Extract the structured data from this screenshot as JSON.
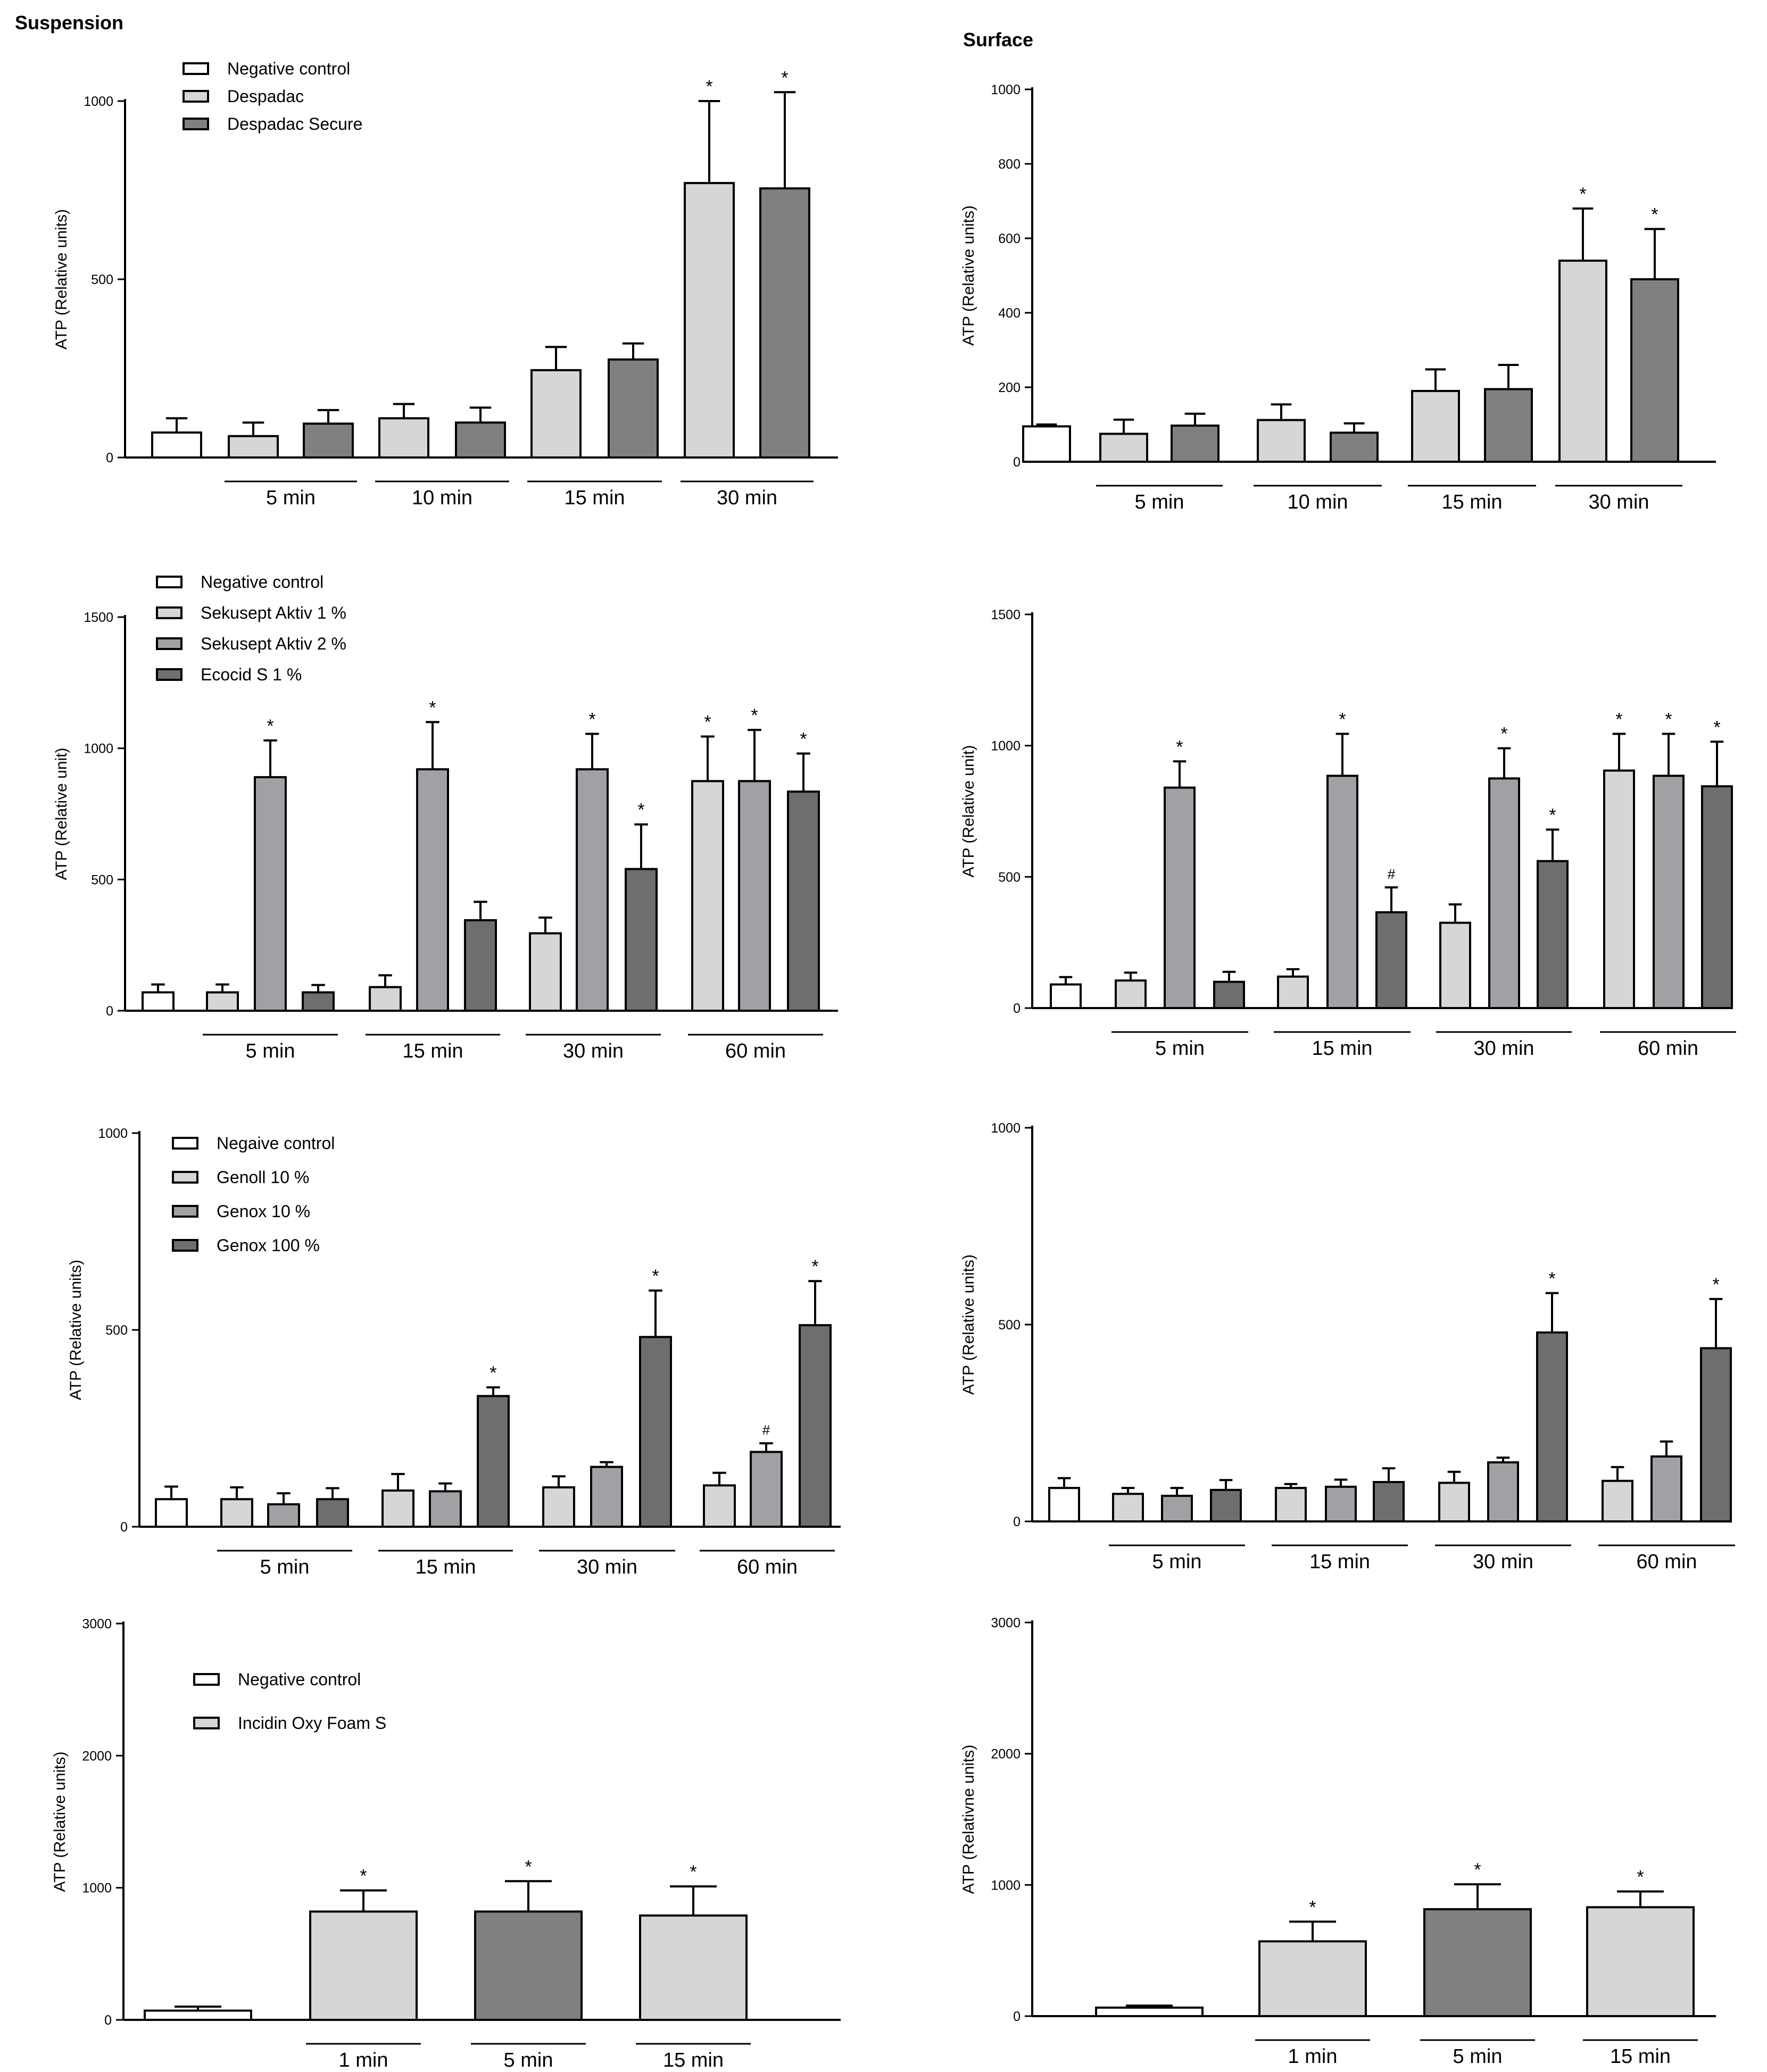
{
  "headers": {
    "suspension": "Suspension",
    "surface": "Surface"
  },
  "colors": {
    "white": "#ffffff",
    "light": "#d6d6d6",
    "mid": "#a0a0a5",
    "dark": "#6e6e6e",
    "darker": "#808080"
  },
  "chart_data": [
    {
      "id": "susp-1",
      "type": "bar",
      "ylabel": "ATP (Relative units)",
      "ylim": [
        0,
        1000
      ],
      "yticks": [
        "0",
        "500",
        "1000"
      ],
      "legend": [
        {
          "label": "Negative control",
          "color": "#ffffff"
        },
        {
          "label": "Despadac",
          "color": "#d6d6d6"
        },
        {
          "label": "Despadac Secure",
          "color": "#808080"
        }
      ],
      "groups": [
        "5 min",
        "10 min",
        "15 min",
        "30 min"
      ],
      "bars": [
        {
          "value": 70,
          "error": 40,
          "color": "#ffffff"
        },
        {
          "value": 60,
          "error": 38,
          "color": "#d6d6d6"
        },
        {
          "value": 95,
          "error": 38,
          "color": "#808080"
        },
        {
          "value": 110,
          "error": 40,
          "color": "#d6d6d6"
        },
        {
          "value": 98,
          "error": 42,
          "color": "#808080"
        },
        {
          "value": 245,
          "error": 65,
          "color": "#d6d6d6"
        },
        {
          "value": 275,
          "error": 45,
          "color": "#808080"
        },
        {
          "value": 770,
          "error": 230,
          "color": "#d6d6d6",
          "mark": "*"
        },
        {
          "value": 755,
          "error": 270,
          "color": "#808080",
          "mark": "*"
        }
      ]
    },
    {
      "id": "surf-1",
      "type": "bar",
      "ylabel": "ATP (Relative units)",
      "ylim": [
        0,
        1000
      ],
      "yticks": [
        "0",
        "200",
        "400",
        "600",
        "800",
        "1000"
      ],
      "legend": [],
      "groups": [
        "5 min",
        "10 min",
        "15 min",
        "30 min"
      ],
      "bars": [
        {
          "value": 95,
          "error": 5,
          "color": "#ffffff"
        },
        {
          "value": 75,
          "error": 38,
          "color": "#d6d6d6"
        },
        {
          "value": 97,
          "error": 32,
          "color": "#808080"
        },
        {
          "value": 112,
          "error": 42,
          "color": "#d6d6d6"
        },
        {
          "value": 78,
          "error": 25,
          "color": "#808080"
        },
        {
          "value": 190,
          "error": 58,
          "color": "#d6d6d6"
        },
        {
          "value": 195,
          "error": 65,
          "color": "#808080"
        },
        {
          "value": 540,
          "error": 140,
          "color": "#d6d6d6",
          "mark": "*"
        },
        {
          "value": 490,
          "error": 135,
          "color": "#808080",
          "mark": "*"
        }
      ]
    },
    {
      "id": "susp-2",
      "type": "bar",
      "ylabel": "ATP (Relative unit)",
      "ylim": [
        0,
        1500
      ],
      "yticks": [
        "0",
        "500",
        "1000",
        "1500"
      ],
      "legend": [
        {
          "label": "Negative control",
          "color": "#ffffff"
        },
        {
          "label": "Sekusept Aktiv 1 %",
          "color": "#d6d6d6"
        },
        {
          "label": "Sekusept Aktiv 2 %",
          "color": "#a0a0a5"
        },
        {
          "label": "Ecocid S 1 %",
          "color": "#6e6e6e"
        }
      ],
      "groups": [
        "5 min",
        "15 min",
        "30 min",
        "60 min"
      ],
      "bars": [
        {
          "value": 70,
          "error": 30,
          "color": "#ffffff"
        },
        {
          "value": 70,
          "error": 30,
          "color": "#d6d6d6"
        },
        {
          "value": 890,
          "error": 140,
          "color": "#a0a0a5",
          "mark": "*"
        },
        {
          "value": 70,
          "error": 28,
          "color": "#6e6e6e"
        },
        {
          "value": 90,
          "error": 45,
          "color": "#d6d6d6"
        },
        {
          "value": 920,
          "error": 180,
          "color": "#a0a0a5",
          "mark": "*"
        },
        {
          "value": 345,
          "error": 70,
          "color": "#6e6e6e"
        },
        {
          "value": 295,
          "error": 60,
          "color": "#d6d6d6"
        },
        {
          "value": 920,
          "error": 135,
          "color": "#a0a0a5",
          "mark": "*"
        },
        {
          "value": 540,
          "error": 170,
          "color": "#6e6e6e",
          "mark": "*"
        },
        {
          "value": 875,
          "error": 170,
          "color": "#d6d6d6",
          "mark": "*"
        },
        {
          "value": 875,
          "error": 195,
          "color": "#a0a0a5",
          "mark": "*"
        },
        {
          "value": 835,
          "error": 145,
          "color": "#6e6e6e",
          "mark": "*"
        }
      ]
    },
    {
      "id": "surf-2",
      "type": "bar",
      "ylabel": "ATP (Relative unit)",
      "ylim": [
        0,
        1500
      ],
      "yticks": [
        "0",
        "500",
        "1000",
        "1500"
      ],
      "legend": [],
      "groups": [
        "5 min",
        "15 min",
        "30 min",
        "60 min"
      ],
      "bars": [
        {
          "value": 90,
          "error": 28,
          "color": "#ffffff"
        },
        {
          "value": 105,
          "error": 30,
          "color": "#d6d6d6"
        },
        {
          "value": 840,
          "error": 100,
          "color": "#a0a0a5",
          "mark": "*"
        },
        {
          "value": 100,
          "error": 38,
          "color": "#6e6e6e"
        },
        {
          "value": 120,
          "error": 28,
          "color": "#d6d6d6"
        },
        {
          "value": 885,
          "error": 160,
          "color": "#a0a0a5",
          "mark": "*"
        },
        {
          "value": 365,
          "error": 95,
          "color": "#6e6e6e",
          "mark": "#"
        },
        {
          "value": 325,
          "error": 70,
          "color": "#d6d6d6"
        },
        {
          "value": 875,
          "error": 115,
          "color": "#a0a0a5",
          "mark": "*"
        },
        {
          "value": 560,
          "error": 120,
          "color": "#6e6e6e",
          "mark": "*"
        },
        {
          "value": 905,
          "error": 140,
          "color": "#d6d6d6",
          "mark": "*"
        },
        {
          "value": 885,
          "error": 160,
          "color": "#a0a0a5",
          "mark": "*"
        },
        {
          "value": 845,
          "error": 170,
          "color": "#6e6e6e",
          "mark": "*"
        }
      ]
    },
    {
      "id": "susp-3",
      "type": "bar",
      "ylabel": "ATP (Relative units)",
      "ylim": [
        0,
        1000
      ],
      "yticks": [
        "0",
        "500",
        "1000"
      ],
      "legend": [
        {
          "label": "Negaive control",
          "color": "#ffffff"
        },
        {
          "label": "Genoll 10 %",
          "color": "#d6d6d6"
        },
        {
          "label": "Genox 10 %",
          "color": "#a0a0a5"
        },
        {
          "label": "Genox 100 %",
          "color": "#6e6e6e"
        }
      ],
      "groups": [
        "5 min",
        "15 min",
        "30 min",
        "60 min"
      ],
      "bars": [
        {
          "value": 70,
          "error": 32,
          "color": "#ffffff"
        },
        {
          "value": 70,
          "error": 30,
          "color": "#d6d6d6"
        },
        {
          "value": 57,
          "error": 28,
          "color": "#a0a0a5"
        },
        {
          "value": 70,
          "error": 28,
          "color": "#6e6e6e"
        },
        {
          "value": 92,
          "error": 42,
          "color": "#d6d6d6"
        },
        {
          "value": 90,
          "error": 20,
          "color": "#a0a0a5"
        },
        {
          "value": 332,
          "error": 22,
          "color": "#6e6e6e",
          "mark": "*"
        },
        {
          "value": 100,
          "error": 28,
          "color": "#d6d6d6"
        },
        {
          "value": 152,
          "error": 12,
          "color": "#a0a0a5"
        },
        {
          "value": 482,
          "error": 118,
          "color": "#6e6e6e",
          "mark": "*"
        },
        {
          "value": 105,
          "error": 32,
          "color": "#d6d6d6"
        },
        {
          "value": 190,
          "error": 22,
          "color": "#a0a0a5",
          "mark": "#"
        },
        {
          "value": 512,
          "error": 112,
          "color": "#6e6e6e",
          "mark": "*"
        }
      ]
    },
    {
      "id": "surf-3",
      "type": "bar",
      "ylabel": "ATP (Relative units)",
      "ylim": [
        0,
        1000
      ],
      "yticks": [
        "0",
        "500",
        "1000"
      ],
      "legend": [],
      "groups": [
        "5 min",
        "15 min",
        "30 min",
        "60 min"
      ],
      "bars": [
        {
          "value": 85,
          "error": 25,
          "color": "#ffffff"
        },
        {
          "value": 70,
          "error": 15,
          "color": "#d6d6d6"
        },
        {
          "value": 65,
          "error": 20,
          "color": "#a0a0a5"
        },
        {
          "value": 80,
          "error": 25,
          "color": "#6e6e6e"
        },
        {
          "value": 85,
          "error": 10,
          "color": "#d6d6d6"
        },
        {
          "value": 88,
          "error": 18,
          "color": "#a0a0a5"
        },
        {
          "value": 100,
          "error": 35,
          "color": "#6e6e6e"
        },
        {
          "value": 98,
          "error": 28,
          "color": "#d6d6d6"
        },
        {
          "value": 150,
          "error": 12,
          "color": "#a0a0a5"
        },
        {
          "value": 480,
          "error": 100,
          "color": "#6e6e6e",
          "mark": "*"
        },
        {
          "value": 103,
          "error": 35,
          "color": "#d6d6d6"
        },
        {
          "value": 165,
          "error": 38,
          "color": "#a0a0a5"
        },
        {
          "value": 440,
          "error": 125,
          "color": "#6e6e6e",
          "mark": "*"
        }
      ]
    },
    {
      "id": "susp-4",
      "type": "bar",
      "ylabel": "ATP (Relative units)",
      "ylim": [
        0,
        3000
      ],
      "yticks": [
        "0",
        "1000",
        "2000",
        "3000"
      ],
      "legend": [
        {
          "label": "Negative control",
          "color": "#ffffff"
        },
        {
          "label": "Incidin Oxy Foam S",
          "color": "#d6d6d6"
        }
      ],
      "groups": [
        "1 min",
        "5 min",
        "15 min"
      ],
      "bars": [
        {
          "value": 70,
          "error": 30,
          "color": "#ffffff"
        },
        {
          "value": 820,
          "error": 160,
          "color": "#d6d6d6",
          "mark": "*"
        },
        {
          "value": 820,
          "error": 230,
          "color": "#808080",
          "mark": "*"
        },
        {
          "value": 790,
          "error": 220,
          "color": "#d6d6d6",
          "mark": "*"
        }
      ]
    },
    {
      "id": "surf-4",
      "type": "bar",
      "ylabel": "ATP (Relativne units)",
      "ylim": [
        0,
        3000
      ],
      "yticks": [
        "0",
        "1000",
        "2000",
        "3000"
      ],
      "legend": [],
      "groups": [
        "1 min",
        "5 min",
        "15 min"
      ],
      "bars": [
        {
          "value": 65,
          "error": 15,
          "color": "#ffffff"
        },
        {
          "value": 570,
          "error": 150,
          "color": "#d6d6d6",
          "mark": "*"
        },
        {
          "value": 815,
          "error": 190,
          "color": "#808080",
          "mark": "*"
        },
        {
          "value": 830,
          "error": 120,
          "color": "#d6d6d6",
          "mark": "*"
        }
      ]
    }
  ]
}
